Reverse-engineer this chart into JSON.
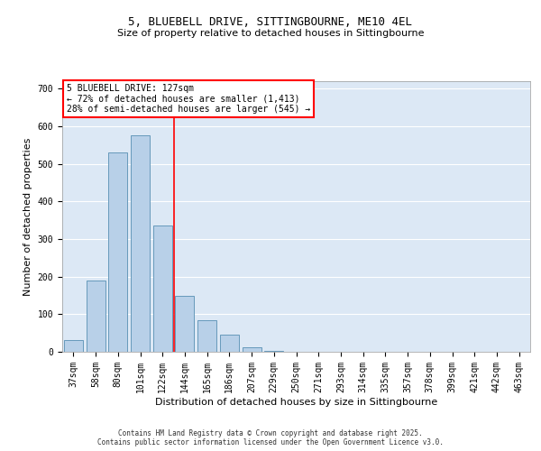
{
  "title_line1": "5, BLUEBELL DRIVE, SITTINGBOURNE, ME10 4EL",
  "title_line2": "Size of property relative to detached houses in Sittingbourne",
  "xlabel": "Distribution of detached houses by size in Sittingbourne",
  "ylabel": "Number of detached properties",
  "categories": [
    "37sqm",
    "58sqm",
    "80sqm",
    "101sqm",
    "122sqm",
    "144sqm",
    "165sqm",
    "186sqm",
    "207sqm",
    "229sqm",
    "250sqm",
    "271sqm",
    "293sqm",
    "314sqm",
    "335sqm",
    "357sqm",
    "378sqm",
    "399sqm",
    "421sqm",
    "442sqm",
    "463sqm"
  ],
  "values": [
    32,
    190,
    530,
    575,
    335,
    150,
    85,
    45,
    12,
    3,
    1,
    0,
    0,
    0,
    0,
    0,
    0,
    0,
    0,
    0,
    1
  ],
  "bar_color": "#b8d0e8",
  "bar_edge_color": "#6699bb",
  "red_line_index": 4.5,
  "annotation_text_line1": "5 BLUEBELL DRIVE: 127sqm",
  "annotation_text_line2": "← 72% of detached houses are smaller (1,413)",
  "annotation_text_line3": "28% of semi-detached houses are larger (545) →",
  "ylim": [
    0,
    720
  ],
  "yticks": [
    0,
    100,
    200,
    300,
    400,
    500,
    600,
    700
  ],
  "background_color": "#dce8f5",
  "footer_line1": "Contains HM Land Registry data © Crown copyright and database right 2025.",
  "footer_line2": "Contains public sector information licensed under the Open Government Licence v3.0.",
  "grid_color": "#ffffff",
  "title1_fontsize": 9,
  "title2_fontsize": 8,
  "ylabel_fontsize": 8,
  "xlabel_fontsize": 8,
  "tick_fontsize": 7,
  "footer_fontsize": 5.5,
  "annot_fontsize": 7
}
